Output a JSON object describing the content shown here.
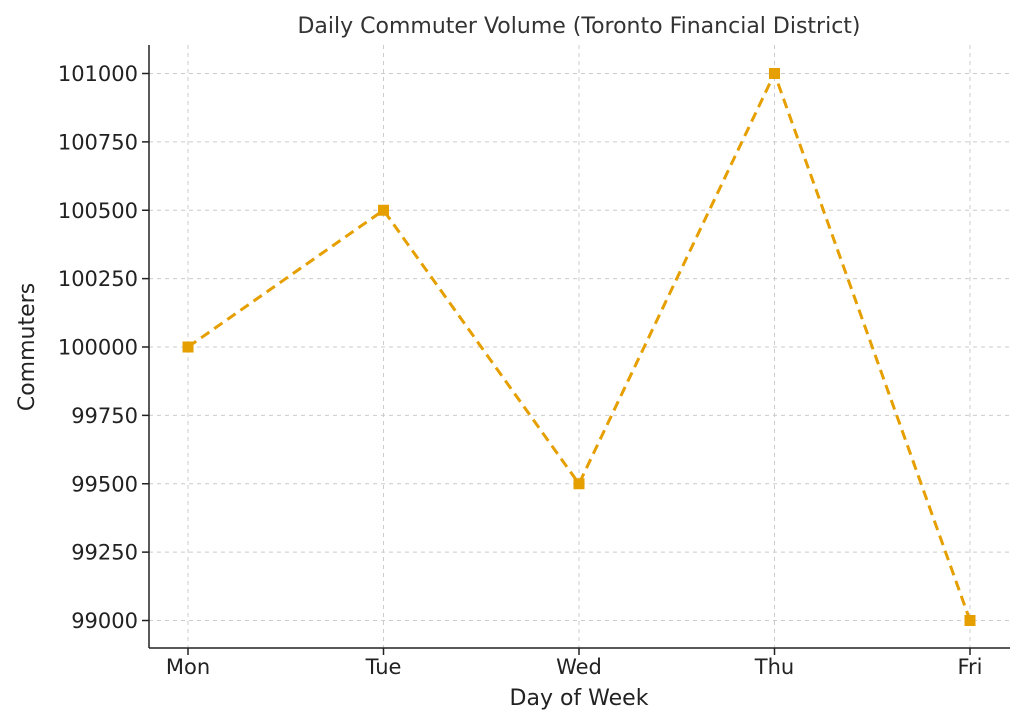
{
  "chart_data": {
    "type": "line",
    "title": "Daily Commuter Volume (Toronto Financial District)",
    "xlabel": "Day of Week",
    "ylabel": "Commuters",
    "categories": [
      "Mon",
      "Tue",
      "Wed",
      "Thu",
      "Fri"
    ],
    "series": [
      {
        "values": [
          100000,
          100500,
          99500,
          101000,
          99000
        ]
      }
    ],
    "ylim": [
      98900,
      101100
    ],
    "yticks": [
      99000,
      99250,
      99500,
      99750,
      100000,
      100250,
      100500,
      100750,
      101000
    ],
    "grid": true,
    "line_style": "dashed",
    "marker": "square",
    "color": "#E69F00"
  }
}
